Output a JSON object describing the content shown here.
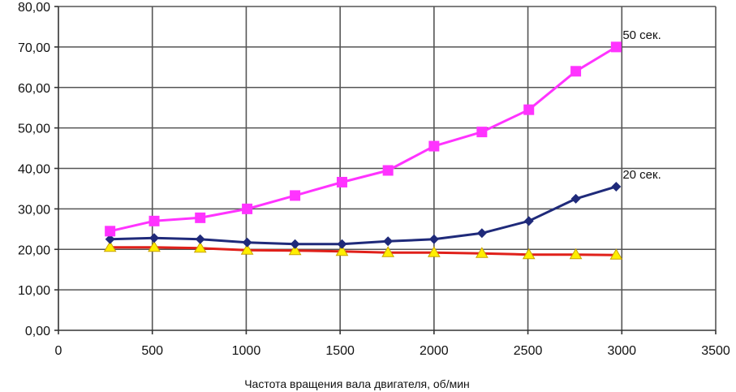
{
  "chart_data": {
    "type": "line",
    "xlabel": "Частота вращения вала двигателя, об/мин",
    "ylabel": "",
    "xlim": [
      0,
      3500
    ],
    "ylim": [
      0,
      80
    ],
    "x_ticks": [
      "0",
      "500",
      "1000",
      "1500",
      "2000",
      "2500",
      "3000",
      "3500"
    ],
    "y_ticks": [
      "0,00",
      "10,00",
      "20,00",
      "30,00",
      "40,00",
      "50,00",
      "60,00",
      "70,00",
      "80,00"
    ],
    "grid": true,
    "series": [
      {
        "name": "50 сек.",
        "color": "#ff33ff",
        "marker": "square",
        "x": [
          275,
          510,
          755,
          1005,
          1260,
          1510,
          1755,
          2000,
          2255,
          2505,
          2755,
          2970
        ],
        "y": [
          24.5,
          27.0,
          27.8,
          30.0,
          33.3,
          36.6,
          39.5,
          45.5,
          49.0,
          54.5,
          64.0,
          70.0
        ]
      },
      {
        "name": "20 сек.",
        "color": "#1f2a7a",
        "marker": "diamond",
        "x": [
          275,
          510,
          755,
          1005,
          1260,
          1510,
          1755,
          2000,
          2255,
          2505,
          2755,
          2970
        ],
        "y": [
          22.5,
          22.8,
          22.5,
          21.7,
          21.3,
          21.3,
          22.0,
          22.5,
          24.0,
          27.0,
          32.5,
          35.5
        ]
      },
      {
        "name": "",
        "color": "#e0201a",
        "marker": "triangle",
        "marker_fill": "#ffee00",
        "x": [
          275,
          510,
          755,
          1005,
          1260,
          1510,
          1755,
          2000,
          2255,
          2505,
          2755,
          2970
        ],
        "y": [
          20.5,
          20.5,
          20.3,
          19.8,
          19.7,
          19.5,
          19.2,
          19.2,
          19.0,
          18.7,
          18.7,
          18.6
        ]
      }
    ]
  }
}
